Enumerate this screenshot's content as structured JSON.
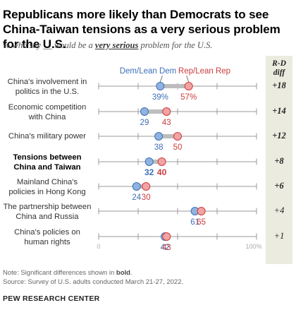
{
  "title": "Republicans more likely than Democrats to see China-Taiwan tensions as a very serious problem for the U.S.",
  "subtitle_pre": "% who say __ would be a ",
  "subtitle_em": "very serious",
  "subtitle_post": " problem for the U.S.",
  "diff_header": [
    "R-D",
    "diff"
  ],
  "notes": {
    "prefix": "Note: Significant differences shown in ",
    "bold_word": "bold",
    "suffix": ".",
    "source": "Source: Survey of U.S. adults conducted March 21-27, 2022."
  },
  "org": "PEW RESEARCH CENTER",
  "colors": {
    "dem": "#3d6fb6",
    "rep": "#cc3b3b",
    "dem_fill": "#8fb3e0",
    "rep_fill": "#f2a3a3",
    "diff_bg": "#ecebdf"
  },
  "chart_data": {
    "type": "dot",
    "xlim": [
      0,
      100
    ],
    "axis_labels": [
      "0",
      "100%"
    ],
    "series_names": [
      "Dem/Lean Dem",
      "Rep/Lean Rep"
    ],
    "rows": [
      {
        "label": [
          "China's involvement in",
          "politics in the U.S."
        ],
        "dem": 39,
        "rep": 57,
        "dem_label": "39%",
        "rep_label": "57%",
        "diff": "+18",
        "significant": false
      },
      {
        "label": [
          "Economic competition",
          "with China"
        ],
        "dem": 29,
        "rep": 43,
        "dem_label": "29",
        "rep_label": "43",
        "diff": "+14",
        "significant": false
      },
      {
        "label": [
          "China's military power"
        ],
        "dem": 38,
        "rep": 50,
        "dem_label": "38",
        "rep_label": "50",
        "diff": "+12",
        "significant": false
      },
      {
        "label": [
          "Tensions between",
          "China and Taiwan"
        ],
        "dem": 32,
        "rep": 40,
        "dem_label": "32",
        "rep_label": "40",
        "diff": "+8",
        "significant": true
      },
      {
        "label": [
          "Mainland China's",
          "policies in Hong Kong"
        ],
        "dem": 24,
        "rep": 30,
        "dem_label": "24",
        "rep_label": "30",
        "diff": "+6",
        "significant": false
      },
      {
        "label": [
          "The partnership between",
          "China and Russia"
        ],
        "dem": 61,
        "rep": 65,
        "dem_label": "61",
        "rep_label": "65",
        "diff": "+4",
        "significant": false
      },
      {
        "label": [
          "China's policies on",
          "human rights"
        ],
        "dem": 42,
        "rep": 43,
        "dem_label": "42",
        "rep_label": "43",
        "diff": "+1",
        "significant": false
      }
    ]
  }
}
